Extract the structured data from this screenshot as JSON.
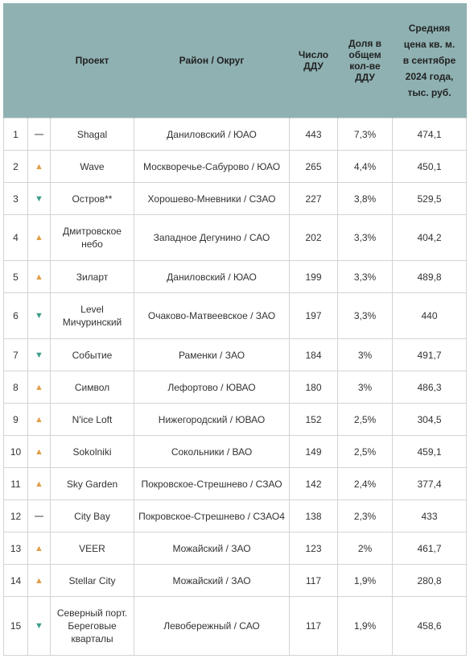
{
  "header": {
    "project": "Проект",
    "district": "Район / Округ",
    "ddu_count": [
      "Число",
      "ДДУ"
    ],
    "share": [
      "Доля в",
      "общем",
      "кол-ве",
      "ДДУ"
    ],
    "price": [
      "Средняя",
      "цена кв. м.",
      "в сентябре",
      "2024 года,",
      "тыс. руб."
    ]
  },
  "rows": [
    {
      "rank": "1",
      "trend": "same",
      "trend_glyph": "—",
      "project": "Shagal",
      "district": "Даниловский / ЮАО",
      "count": "443",
      "share": "7,3%",
      "price": "474,1"
    },
    {
      "rank": "2",
      "trend": "up",
      "trend_glyph": "▲",
      "project": "Wave",
      "district": "Москворечье-Сабурово / ЮАО",
      "count": "265",
      "share": "4,4%",
      "price": "450,1"
    },
    {
      "rank": "3",
      "trend": "down",
      "trend_glyph": "▼",
      "project": "Остров**",
      "district": "Хорошево-Мневники / СЗАО",
      "count": "227",
      "share": "3,8%",
      "price": "529,5"
    },
    {
      "rank": "4",
      "trend": "up",
      "trend_glyph": "▲",
      "project": "Дмитровское небо",
      "district": "Западное Дегунино / САО",
      "count": "202",
      "share": "3,3%",
      "price": "404,2"
    },
    {
      "rank": "5",
      "trend": "up",
      "trend_glyph": "▲",
      "project": "Зиларт",
      "district": "Даниловский / ЮАО",
      "count": "199",
      "share": "3,3%",
      "price": "489,8"
    },
    {
      "rank": "6",
      "trend": "down",
      "trend_glyph": "▼",
      "project": "Level Мичуринский",
      "district": "Очаково-Матвеевское / ЗАО",
      "count": "197",
      "share": "3,3%",
      "price": "440"
    },
    {
      "rank": "7",
      "trend": "down",
      "trend_glyph": "▼",
      "project": "Событие",
      "district": "Раменки / ЗАО",
      "count": "184",
      "share": "3%",
      "price": "491,7"
    },
    {
      "rank": "8",
      "trend": "up",
      "trend_glyph": "▲",
      "project": "Символ",
      "district": "Лефортово / ЮВАО",
      "count": "180",
      "share": "3%",
      "price": "486,3"
    },
    {
      "rank": "9",
      "trend": "up",
      "trend_glyph": "▲",
      "project": "N'ice Loft",
      "district": "Нижегородский / ЮВАО",
      "count": "152",
      "share": "2,5%",
      "price": "304,5"
    },
    {
      "rank": "10",
      "trend": "up",
      "trend_glyph": "▲",
      "project": "Sokolniki",
      "district": "Сокольники / ВАО",
      "count": "149",
      "share": "2,5%",
      "price": "459,1"
    },
    {
      "rank": "11",
      "trend": "up",
      "trend_glyph": "▲",
      "project": "Sky Garden",
      "district": "Покровское-Стрешнево / СЗАО",
      "count": "142",
      "share": "2,4%",
      "price": "377,4"
    },
    {
      "rank": "12",
      "trend": "same",
      "trend_glyph": "—",
      "project": "City Bay",
      "district": "Покровское-Стрешнево / СЗАО4",
      "count": "138",
      "share": "2,3%",
      "price": "433"
    },
    {
      "rank": "13",
      "trend": "up",
      "trend_glyph": "▲",
      "project": "VEER",
      "district": "Можайский / ЗАО",
      "count": "123",
      "share": "2%",
      "price": "461,7"
    },
    {
      "rank": "14",
      "trend": "up",
      "trend_glyph": "▲",
      "project": "Stellar City",
      "district": "Можайский / ЗАО",
      "count": "117",
      "share": "1,9%",
      "price": "280,8"
    },
    {
      "rank": "15",
      "trend": "down",
      "trend_glyph": "▼",
      "project": "Северный порт. Береговые кварталы",
      "district": "Левобережный / САО",
      "count": "117",
      "share": "1,9%",
      "price": "458,6"
    }
  ]
}
